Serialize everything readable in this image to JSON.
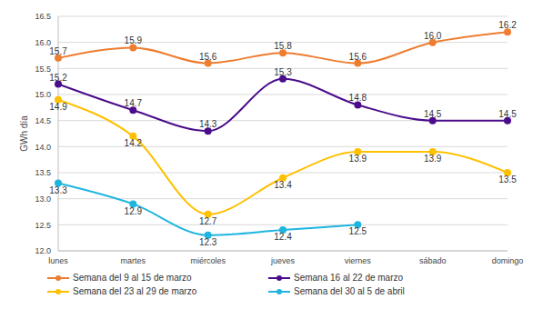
{
  "chart_data": {
    "type": "line",
    "y_label": "GWh día",
    "categories": [
      "lunes",
      "martes",
      "miércoles",
      "jueves",
      "viernes",
      "sábado",
      "domingo"
    ],
    "ylim": [
      12,
      16.5
    ],
    "yticks": [
      {
        "value": 12,
        "label": "12.0"
      },
      12.5,
      {
        "value": 13,
        "label": "13.0"
      },
      13.5,
      {
        "value": 14,
        "label": "14.0"
      },
      14.5,
      {
        "value": 15,
        "label": "15.0"
      },
      15.5,
      {
        "value": 16,
        "label": "16.0"
      },
      16.5
    ],
    "grid": true,
    "legend": "bottom",
    "data_labels": true,
    "marker": "circle",
    "line_style": "solid",
    "series": [
      {
        "name": "Semana del 9 al 15 de marzo",
        "color": "#ED7D31",
        "values": [
          15.7,
          15.9,
          15.6,
          15.8,
          15.6,
          16.0,
          16.2
        ],
        "value_labels": [
          "15.7",
          "15.9",
          "15.6",
          "15.8",
          "15.6",
          "16.0",
          "16.2"
        ]
      },
      {
        "name": "Semana 16 al 22 de marzo",
        "color": "#4B0D8C",
        "values": [
          15.2,
          14.7,
          14.3,
          15.3,
          14.8,
          14.5,
          14.5
        ],
        "value_labels": [
          "15.2",
          "14.7",
          "14.3",
          "15.3",
          "14.8",
          "14.5",
          "14.5"
        ]
      },
      {
        "name": "Semana del 23 al 29 de marzo",
        "color": "#FFC000",
        "values": [
          14.9,
          14.2,
          12.7,
          13.4,
          13.9,
          13.9,
          13.5
        ],
        "value_labels": [
          "14.9",
          "14.2",
          "12.7",
          "13.4",
          "13.9",
          "13.9",
          "13.5"
        ]
      },
      {
        "name": "Semana del 30 al 5 de abril",
        "color": "#1FB5E0",
        "values": [
          13.3,
          12.9,
          12.3,
          12.4,
          12.5,
          null,
          null
        ],
        "value_labels": [
          "13.3",
          "12.9",
          "12.3",
          "12.4",
          "12.5",
          null,
          null
        ]
      }
    ]
  }
}
